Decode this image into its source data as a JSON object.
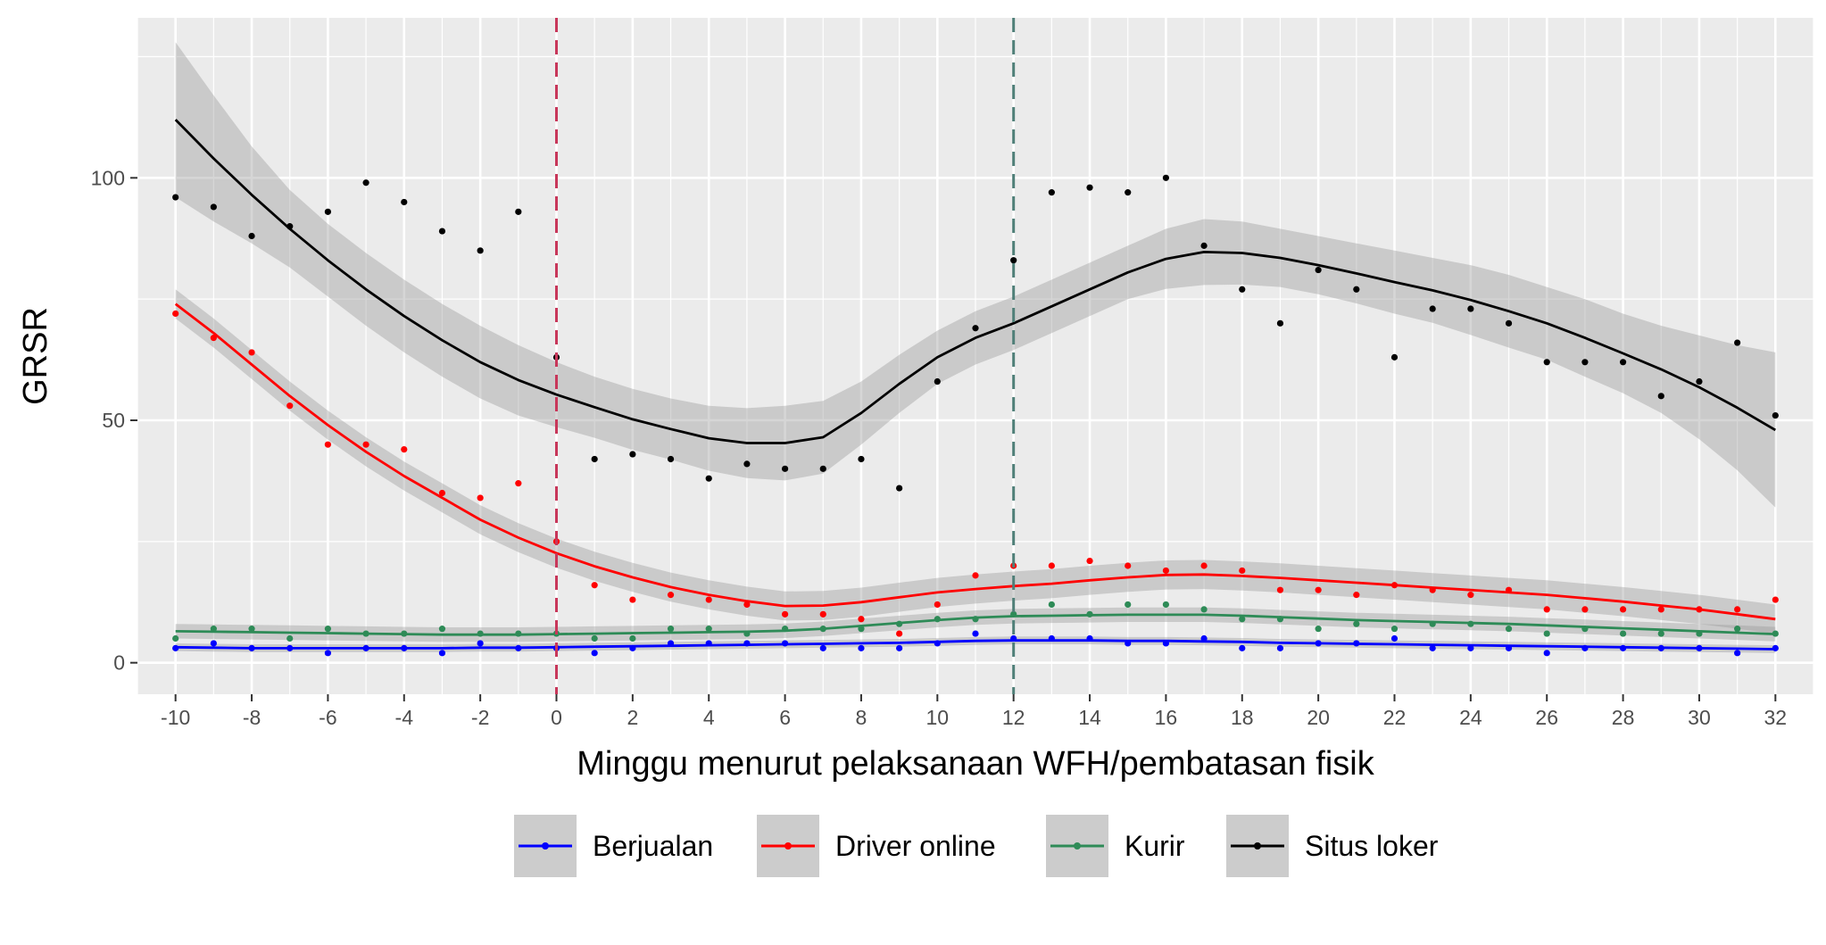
{
  "chart_data": {
    "type": "scatter",
    "title": "",
    "xlabel": "Minggu menurut pelaksanaan WFH/pembatasan fisik",
    "ylabel": "GRSR",
    "xlim": [
      -11,
      33
    ],
    "ylim": [
      -6.5,
      133
    ],
    "x_ticks": [
      -10,
      -8,
      -6,
      -4,
      -2,
      0,
      2,
      4,
      6,
      8,
      10,
      12,
      14,
      16,
      18,
      20,
      22,
      24,
      26,
      28,
      30,
      32
    ],
    "x_tick_labels": [
      "-10",
      "-8",
      "-6",
      "-4",
      "-2",
      "0",
      "2",
      "4",
      "6",
      "8",
      "10",
      "12",
      "14",
      "16",
      "18",
      "20",
      "22",
      "24",
      "26",
      "28",
      "30",
      "32"
    ],
    "y_ticks": [
      0,
      50,
      100
    ],
    "y_tick_labels": [
      "0",
      "50",
      "100"
    ],
    "grid": true,
    "legend_position": "bottom",
    "reference_lines": [
      {
        "x": 0,
        "color": "#c8375a",
        "style": "dashed"
      },
      {
        "x": 12,
        "color": "#4f7f78",
        "style": "dashed"
      }
    ],
    "x": [
      -10,
      -9,
      -8,
      -7,
      -6,
      -5,
      -4,
      -3,
      -2,
      -1,
      0,
      1,
      2,
      3,
      4,
      5,
      6,
      7,
      8,
      9,
      10,
      11,
      12,
      13,
      14,
      15,
      16,
      17,
      18,
      19,
      20,
      21,
      22,
      23,
      24,
      25,
      26,
      27,
      28,
      29,
      30,
      31,
      32
    ],
    "series": [
      {
        "name": "Berjualan",
        "color": "#0000ff",
        "points": [
          3,
          4,
          3,
          3,
          2,
          3,
          3,
          2,
          4,
          3,
          3,
          2,
          3,
          4,
          4,
          4,
          4,
          3,
          3,
          3,
          4,
          6,
          5,
          5,
          5,
          4,
          4,
          5,
          3,
          3,
          4,
          4,
          5,
          3,
          3,
          3,
          2,
          3,
          3,
          3,
          3,
          2,
          3
        ],
        "smooth": [
          3.2,
          3.1,
          3.0,
          3.0,
          3.0,
          3.0,
          3.0,
          3.0,
          3.1,
          3.1,
          3.2,
          3.3,
          3.4,
          3.5,
          3.6,
          3.7,
          3.8,
          3.9,
          4.0,
          4.1,
          4.3,
          4.5,
          4.6,
          4.6,
          4.6,
          4.5,
          4.5,
          4.4,
          4.3,
          4.1,
          4.0,
          3.9,
          3.8,
          3.7,
          3.6,
          3.5,
          3.4,
          3.3,
          3.2,
          3.1,
          3.0,
          2.9,
          2.8
        ],
        "band": 0.8
      },
      {
        "name": "Driver online",
        "color": "#ff0000",
        "points": [
          72,
          67,
          64,
          53,
          45,
          45,
          44,
          35,
          34,
          37,
          25,
          16,
          13,
          14,
          13,
          12,
          10,
          10,
          9,
          6,
          12,
          18,
          20,
          20,
          21,
          20,
          19,
          20,
          19,
          15,
          15,
          14,
          16,
          15,
          14,
          15,
          11,
          11,
          11,
          11,
          11,
          11,
          13
        ],
        "smooth": [
          74,
          68,
          61.5,
          55,
          49,
          43.5,
          38.5,
          34,
          29.5,
          25.8,
          22.6,
          19.9,
          17.6,
          15.6,
          14,
          12.7,
          11.7,
          11.8,
          12.5,
          13.5,
          14.5,
          15.2,
          15.8,
          16.3,
          17,
          17.6,
          18.1,
          18.2,
          17.9,
          17.5,
          17,
          16.5,
          16,
          15.5,
          15,
          14.5,
          14,
          13.3,
          12.6,
          11.8,
          11,
          10,
          9
        ],
        "band": 3
      },
      {
        "name": "Kurir",
        "color": "#2e8b57",
        "points": [
          5,
          7,
          7,
          5,
          7,
          6,
          6,
          7,
          6,
          6,
          6,
          5,
          5,
          7,
          7,
          6,
          7,
          7,
          7,
          8,
          9,
          9,
          10,
          12,
          10,
          12,
          12,
          11,
          9,
          9,
          7,
          8,
          7,
          8,
          8,
          7,
          6,
          7,
          6,
          6,
          6,
          7,
          6
        ],
        "smooth": [
          6.5,
          6.4,
          6.3,
          6.2,
          6.1,
          6.0,
          5.9,
          5.8,
          5.8,
          5.8,
          5.9,
          6.0,
          6.1,
          6.2,
          6.3,
          6.4,
          6.6,
          7,
          7.6,
          8.2,
          8.8,
          9.3,
          9.6,
          9.7,
          9.8,
          9.9,
          9.9,
          9.9,
          9.7,
          9.4,
          9.1,
          8.8,
          8.6,
          8.4,
          8.2,
          8.0,
          7.7,
          7.4,
          7.1,
          6.8,
          6.5,
          6.2,
          5.9
        ],
        "band": 1.5
      },
      {
        "name": "Situs loker",
        "color": "#000000",
        "points": [
          96,
          94,
          88,
          90,
          93,
          99,
          95,
          89,
          85,
          93,
          63,
          42,
          43,
          42,
          38,
          41,
          40,
          40,
          42,
          36,
          58,
          69,
          83,
          97,
          98,
          97,
          100,
          86,
          77,
          70,
          81,
          77,
          63,
          73,
          73,
          70,
          62,
          62,
          62,
          55,
          58,
          66,
          51
        ],
        "smooth": [
          112,
          104,
          96.5,
          89.5,
          83,
          77,
          71.5,
          66.5,
          62,
          58.3,
          55.3,
          52.7,
          50.2,
          48.2,
          46.3,
          45.3,
          45.3,
          46.5,
          51.5,
          57.5,
          63,
          67,
          70,
          73.5,
          77,
          80.5,
          83.3,
          84.7,
          84.5,
          83.5,
          82,
          80.3,
          78.5,
          76.8,
          74.8,
          72.5,
          70,
          67,
          63.8,
          60.5,
          56.8,
          52.6,
          48
        ],
        "band_upper": [
          128,
          117,
          106.5,
          97.5,
          90.5,
          84.5,
          79,
          74,
          69.5,
          65.5,
          62,
          59,
          56.5,
          54.5,
          53,
          52.5,
          53,
          54,
          58,
          63.5,
          68.5,
          72.5,
          75.5,
          79,
          82.5,
          86,
          89.5,
          91.5,
          91,
          89.5,
          88,
          86.5,
          85,
          83.5,
          82,
          80,
          77.5,
          75,
          72,
          69.5,
          67.5,
          65.5,
          64
        ],
        "band_lower": [
          96,
          91,
          86.5,
          81.5,
          75.5,
          69.5,
          64,
          59,
          54.5,
          51,
          48.6,
          46.4,
          43.9,
          41.9,
          39.6,
          38.1,
          37.6,
          39,
          45,
          51.5,
          57.5,
          61.5,
          64.5,
          68,
          71.5,
          75,
          77.1,
          77.9,
          78,
          77.5,
          76,
          74.1,
          72,
          70.1,
          67.6,
          65,
          62.5,
          59,
          55.6,
          51.5,
          46.1,
          39.7,
          32
        ]
      }
    ]
  }
}
